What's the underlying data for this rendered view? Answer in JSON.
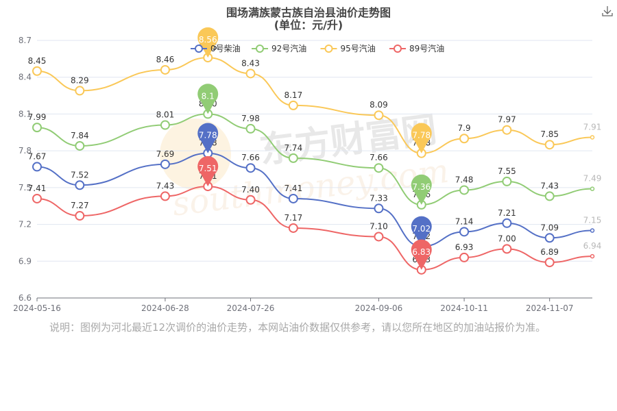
{
  "title": "围场满族蒙古族自治县油价走势图",
  "subtitle": "(单位：元/升)",
  "note": "说明：图例为河北最近12次调价的油价走势，本网站油价数据仅供参考，请以您所在地区的加油站报价为准。",
  "watermark": {
    "cn": "东方财富网",
    "en": "southmoney.com"
  },
  "icons": {
    "download": "download-icon"
  },
  "chart_data": {
    "type": "line",
    "x": [
      "2024-05-16",
      "2024-05-30",
      "2024-06-13",
      "2024-06-28",
      "2024-07-11",
      "2024-07-26",
      "2024-08-08",
      "2024-08-22",
      "2024-09-06",
      "2024-09-20",
      "2024-10-11",
      "2024-10-24",
      "2024-11-07",
      "2024-11-21"
    ],
    "x_tick_labels": [
      "2024-05-16",
      "2024-06-28",
      "2024-07-26",
      "2024-09-06",
      "2024-10-11",
      "2024-11-07"
    ],
    "ylim": [
      6.6,
      8.7
    ],
    "y_ticks": [
      "6.6",
      "6.9",
      "7.2",
      "7.5",
      "7.8",
      "8.1",
      "8.4",
      "8.7"
    ],
    "legend_position": "top-center",
    "series": [
      {
        "name": "0号柴油",
        "color": "#5470c6",
        "values": [
          7.67,
          7.52,
          null,
          7.69,
          7.78,
          7.66,
          7.41,
          null,
          7.33,
          7.02,
          7.14,
          7.21,
          7.09,
          7.15
        ],
        "labels": [
          "7.67",
          "7.52",
          null,
          "7.69",
          "7.78",
          "7.66",
          "7.41",
          null,
          "7.33",
          "7.02",
          "7.14",
          "7.21",
          "7.09",
          "7.15"
        ],
        "max_pin": "7.78",
        "min_pin": "7.02"
      },
      {
        "name": "92号汽油",
        "color": "#91cc75",
        "values": [
          7.99,
          7.84,
          null,
          8.01,
          8.1,
          7.98,
          7.74,
          null,
          7.66,
          7.36,
          7.48,
          7.55,
          7.43,
          7.49
        ],
        "labels": [
          "7.99",
          "7.84",
          null,
          "8.01",
          "8.10",
          "7.98",
          "7.74",
          null,
          "7.66",
          "7.36",
          "7.48",
          "7.55",
          "7.43",
          "7.49"
        ],
        "max_pin": "8.1",
        "min_pin": "7.36"
      },
      {
        "name": "95号汽油",
        "color": "#fac858",
        "values": [
          8.45,
          8.29,
          null,
          8.46,
          8.56,
          8.43,
          8.17,
          null,
          8.09,
          7.78,
          7.9,
          7.97,
          7.85,
          7.91
        ],
        "labels": [
          "8.45",
          "8.29",
          null,
          "8.46",
          "8.56",
          "8.43",
          "8.17",
          null,
          "8.09",
          "7.78",
          "7.9",
          "7.97",
          "7.85",
          "7.91"
        ],
        "max_pin": "8.56",
        "min_pin": "7.78"
      },
      {
        "name": "89号汽油",
        "color": "#ee6666",
        "values": [
          7.41,
          7.27,
          null,
          7.43,
          7.51,
          7.4,
          7.17,
          null,
          7.1,
          6.83,
          6.93,
          7.0,
          6.89,
          6.94
        ],
        "labels": [
          "7.41",
          "7.27",
          null,
          "7.43",
          "7.51",
          "7.40",
          "7.17",
          null,
          "7.10",
          "6.83",
          "6.93",
          "7.00",
          "6.89",
          "6.94"
        ],
        "max_pin": "7.51",
        "min_pin": "6.83"
      }
    ]
  }
}
